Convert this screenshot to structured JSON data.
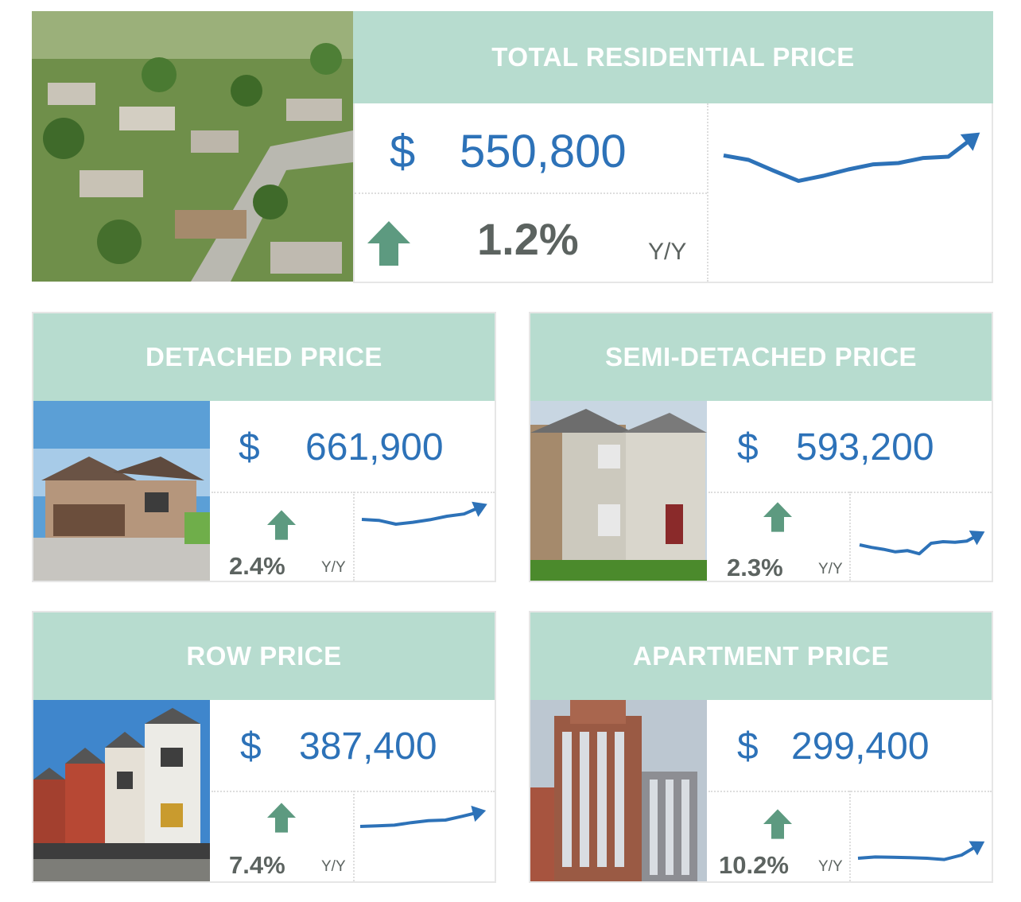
{
  "accent_colors": {
    "header_bg": "#b7dccf",
    "price_text": "#2d72b8",
    "arrow": "#5d9a80",
    "spark": "#2d72b8"
  },
  "total": {
    "title": "TOTAL RESIDENTIAL PRICE",
    "currency": "$",
    "price": "550,800",
    "change": "1.2%",
    "period": "Y/Y",
    "direction": "up-arrow-icon",
    "trend": [
      0.62,
      0.55,
      0.38,
      0.22,
      0.3,
      0.4,
      0.48,
      0.5,
      0.58,
      0.6,
      0.9
    ]
  },
  "detached": {
    "title": "DETACHED PRICE",
    "currency": "$",
    "price": "661,900",
    "change": "2.4%",
    "period": "Y/Y",
    "direction": "up-arrow-icon",
    "trend": [
      0.45,
      0.42,
      0.3,
      0.36,
      0.44,
      0.55,
      0.62,
      0.85
    ]
  },
  "semi": {
    "title": "SEMI-DETACHED PRICE",
    "currency": "$",
    "price": "593,200",
    "change": "2.3%",
    "period": "Y/Y",
    "direction": "up-arrow-icon",
    "trend": [
      0.5,
      0.42,
      0.36,
      0.28,
      0.32,
      0.22,
      0.55,
      0.6,
      0.58,
      0.62,
      0.82
    ]
  },
  "row": {
    "title": "ROW PRICE",
    "currency": "$",
    "price": "387,400",
    "change": "7.4%",
    "period": "Y/Y",
    "direction": "up-arrow-icon",
    "trend": [
      0.4,
      0.42,
      0.44,
      0.52,
      0.58,
      0.6,
      0.72,
      0.85
    ]
  },
  "apartment": {
    "title": "APARTMENT PRICE",
    "currency": "$",
    "price": "299,400",
    "change": "10.2%",
    "period": "Y/Y",
    "direction": "up-arrow-icon",
    "trend": [
      0.3,
      0.34,
      0.33,
      0.32,
      0.3,
      0.26,
      0.4,
      0.72
    ]
  }
}
